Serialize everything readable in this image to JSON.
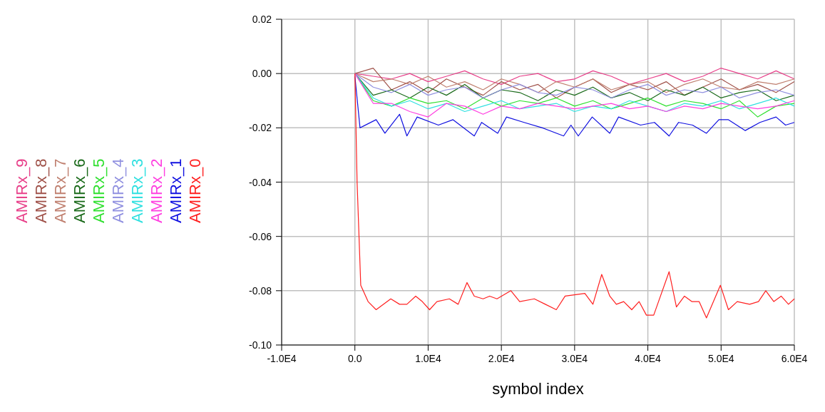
{
  "chart_data": {
    "type": "line",
    "xlabel": "symbol index",
    "xlim": [
      -10000,
      60000
    ],
    "xticks": [
      {
        "value": -10000,
        "label": "-1.0E4"
      },
      {
        "value": 0,
        "label": "0.0"
      },
      {
        "value": 10000,
        "label": "1.0E4"
      },
      {
        "value": 20000,
        "label": "2.0E4"
      },
      {
        "value": 30000,
        "label": "3.0E4"
      },
      {
        "value": 40000,
        "label": "4.0E4"
      },
      {
        "value": 50000,
        "label": "5.0E4"
      },
      {
        "value": 60000,
        "label": "6.0E4"
      }
    ],
    "ylim": [
      -0.1,
      0.02
    ],
    "yticks": [
      {
        "value": 0.02,
        "label": "0.02"
      },
      {
        "value": 0,
        "label": "0.00"
      },
      {
        "value": -0.02,
        "label": "-0.02"
      },
      {
        "value": -0.04,
        "label": "-0.04"
      },
      {
        "value": -0.06,
        "label": "-0.06"
      },
      {
        "value": -0.08,
        "label": "-0.08"
      },
      {
        "value": -0.1,
        "label": "-0.10"
      }
    ],
    "grid": true,
    "legend": "left",
    "marker": "none",
    "line_style": "solid",
    "x": [
      0,
      2500,
      5000,
      7500,
      10000,
      12500,
      15000,
      17500,
      20000,
      22500,
      25000,
      27500,
      30000,
      32500,
      35000,
      37500,
      40000,
      42500,
      45000,
      47500,
      50000,
      52500,
      55000,
      57500,
      60000
    ],
    "series": [
      {
        "name": "AMIRx_9",
        "color": "#e8408a",
        "values": [
          0,
          -0.001,
          -0.002,
          0.0,
          -0.003,
          -0.001,
          0.001,
          -0.002,
          -0.004,
          -0.001,
          0.0,
          -0.003,
          -0.002,
          0.001,
          -0.001,
          -0.004,
          -0.002,
          0.0,
          -0.003,
          -0.001,
          0.002,
          0.0,
          -0.002,
          0.001,
          -0.002
        ]
      },
      {
        "name": "AMIRx_8",
        "color": "#a0524a",
        "values": [
          0,
          0.002,
          -0.006,
          -0.003,
          -0.007,
          -0.002,
          -0.005,
          -0.008,
          -0.003,
          -0.006,
          -0.004,
          -0.009,
          -0.005,
          -0.002,
          -0.007,
          -0.004,
          -0.006,
          -0.003,
          -0.008,
          -0.005,
          -0.002,
          -0.006,
          -0.004,
          -0.007,
          -0.003
        ]
      },
      {
        "name": "AMIRx_7",
        "color": "#c08070",
        "values": [
          0,
          -0.003,
          -0.002,
          -0.004,
          -0.001,
          -0.005,
          -0.003,
          -0.006,
          -0.002,
          -0.004,
          -0.007,
          -0.003,
          -0.005,
          -0.002,
          -0.006,
          -0.004,
          -0.003,
          -0.007,
          -0.004,
          -0.002,
          -0.005,
          -0.006,
          -0.003,
          -0.004,
          -0.002
        ]
      },
      {
        "name": "AMIRx_6",
        "color": "#1a6a1a",
        "values": [
          0,
          -0.008,
          -0.006,
          -0.009,
          -0.005,
          -0.008,
          -0.004,
          -0.009,
          -0.006,
          -0.007,
          -0.01,
          -0.006,
          -0.008,
          -0.005,
          -0.009,
          -0.007,
          -0.01,
          -0.006,
          -0.008,
          -0.005,
          -0.009,
          -0.007,
          -0.006,
          -0.01,
          -0.008
        ]
      },
      {
        "name": "AMIRx_5",
        "color": "#30e030",
        "values": [
          0,
          -0.01,
          -0.012,
          -0.009,
          -0.011,
          -0.01,
          -0.013,
          -0.009,
          -0.012,
          -0.01,
          -0.011,
          -0.009,
          -0.012,
          -0.01,
          -0.013,
          -0.011,
          -0.009,
          -0.012,
          -0.01,
          -0.011,
          -0.013,
          -0.01,
          -0.016,
          -0.012,
          -0.011
        ]
      },
      {
        "name": "AMIRx_4",
        "color": "#9090e0",
        "values": [
          0,
          -0.005,
          -0.007,
          -0.004,
          -0.008,
          -0.006,
          -0.005,
          -0.009,
          -0.006,
          -0.004,
          -0.007,
          -0.008,
          -0.005,
          -0.006,
          -0.009,
          -0.006,
          -0.004,
          -0.008,
          -0.006,
          -0.007,
          -0.005,
          -0.009,
          -0.007,
          -0.006,
          -0.008
        ]
      },
      {
        "name": "AMIRx_3",
        "color": "#30e0e0",
        "values": [
          0,
          -0.009,
          -0.012,
          -0.01,
          -0.013,
          -0.011,
          -0.014,
          -0.012,
          -0.01,
          -0.013,
          -0.012,
          -0.011,
          -0.014,
          -0.012,
          -0.013,
          -0.01,
          -0.012,
          -0.014,
          -0.011,
          -0.012,
          -0.01,
          -0.013,
          -0.011,
          -0.009,
          -0.012
        ]
      },
      {
        "name": "AMIRx_2",
        "color": "#ff40e0",
        "values": [
          0,
          -0.011,
          -0.011,
          -0.014,
          -0.016,
          -0.011,
          -0.012,
          -0.015,
          -0.012,
          -0.013,
          -0.011,
          -0.012,
          -0.013,
          -0.012,
          -0.011,
          -0.013,
          -0.012,
          -0.014,
          -0.012,
          -0.013,
          -0.011,
          -0.012,
          -0.013,
          -0.012,
          -0.01
        ]
      },
      {
        "name": "AMIRx_1",
        "color": "#1010e0",
        "x": [
          0,
          700,
          2900,
          4100,
          6100,
          7100,
          8500,
          11400,
          13400,
          16300,
          17300,
          19500,
          20700,
          23100,
          25600,
          28500,
          29500,
          30500,
          32400,
          34800,
          36000,
          39000,
          40900,
          42900,
          44200,
          46100,
          48000,
          49700,
          51000,
          53300,
          55300,
          57500,
          58800,
          60000
        ],
        "values": [
          -0.001,
          -0.02,
          -0.017,
          -0.022,
          -0.015,
          -0.023,
          -0.016,
          -0.019,
          -0.017,
          -0.023,
          -0.018,
          -0.022,
          -0.016,
          -0.018,
          -0.02,
          -0.023,
          -0.019,
          -0.023,
          -0.016,
          -0.022,
          -0.016,
          -0.019,
          -0.018,
          -0.023,
          -0.018,
          -0.019,
          -0.022,
          -0.017,
          -0.017,
          -0.021,
          -0.018,
          -0.016,
          -0.019,
          -0.018
        ]
      },
      {
        "name": "AMIRx_0",
        "color": "#ff2020",
        "x": [
          0,
          300,
          800,
          1800,
          2900,
          4900,
          6100,
          7100,
          8300,
          9200,
          10200,
          11200,
          12900,
          14100,
          15300,
          16300,
          17500,
          18400,
          19400,
          21300,
          22500,
          24500,
          26000,
          27500,
          28700,
          31400,
          32500,
          33700,
          34800,
          35700,
          36700,
          37800,
          38800,
          39800,
          40800,
          42900,
          43900,
          45000,
          46000,
          47000,
          48000,
          49900,
          51000,
          52200,
          53900,
          55100,
          56100,
          57200,
          58200,
          59200,
          60000
        ],
        "values": [
          0,
          -0.04,
          -0.078,
          -0.084,
          -0.087,
          -0.083,
          -0.085,
          -0.085,
          -0.082,
          -0.084,
          -0.087,
          -0.084,
          -0.083,
          -0.085,
          -0.077,
          -0.082,
          -0.083,
          -0.082,
          -0.083,
          -0.08,
          -0.084,
          -0.083,
          -0.085,
          -0.087,
          -0.082,
          -0.081,
          -0.085,
          -0.074,
          -0.082,
          -0.085,
          -0.084,
          -0.087,
          -0.084,
          -0.089,
          -0.089,
          -0.073,
          -0.086,
          -0.082,
          -0.084,
          -0.084,
          -0.09,
          -0.078,
          -0.087,
          -0.084,
          -0.085,
          -0.084,
          -0.08,
          -0.084,
          -0.082,
          -0.085,
          -0.083
        ]
      }
    ]
  }
}
